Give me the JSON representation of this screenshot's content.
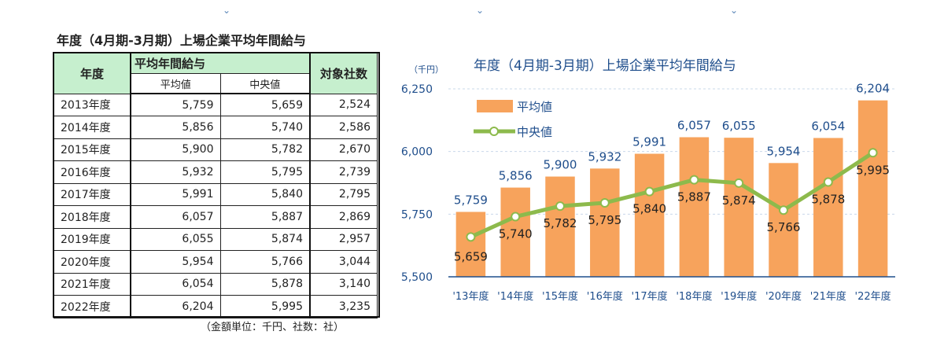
{
  "table": {
    "title": "年度（4月期-3月期）上場企業平均年間給与",
    "header_year": "年度",
    "header_salary": "平均年間給与",
    "header_avg": "平均値",
    "header_median": "中央値",
    "header_count": "対象社数",
    "rows": [
      {
        "year": "2013年度",
        "avg": "5,759",
        "median": "5,659",
        "count": "2,524"
      },
      {
        "year": "2014年度",
        "avg": "5,856",
        "median": "5,740",
        "count": "2,586"
      },
      {
        "year": "2015年度",
        "avg": "5,900",
        "median": "5,782",
        "count": "2,670"
      },
      {
        "year": "2016年度",
        "avg": "5,932",
        "median": "5,795",
        "count": "2,739"
      },
      {
        "year": "2017年度",
        "avg": "5,991",
        "median": "5,840",
        "count": "2,795"
      },
      {
        "year": "2018年度",
        "avg": "6,057",
        "median": "5,887",
        "count": "2,869"
      },
      {
        "year": "2019年度",
        "avg": "6,055",
        "median": "5,874",
        "count": "2,957"
      },
      {
        "year": "2020年度",
        "avg": "5,954",
        "median": "5,766",
        "count": "3,044"
      },
      {
        "year": "2021年度",
        "avg": "6,054",
        "median": "5,878",
        "count": "3,140"
      },
      {
        "year": "2022年度",
        "avg": "6,204",
        "median": "5,995",
        "count": "3,235"
      }
    ],
    "unit_note": "（金額単位：千円、社数：社）"
  },
  "chart_data": {
    "type": "bar",
    "title": "年度（4月期-3月期）上場企業平均年間給与",
    "ylabel": "（千円）",
    "categories": [
      "'13年度",
      "'14年度",
      "'15年度",
      "'16年度",
      "'17年度",
      "'18年度",
      "'19年度",
      "'20年度",
      "'21年度",
      "'22年度"
    ],
    "ylim": [
      5500,
      6250
    ],
    "yticks": [
      5500,
      5750,
      6000,
      6250
    ],
    "ytick_labels": [
      "5,500",
      "5,750",
      "6,000",
      "6,250"
    ],
    "grid": true,
    "legend_position": "top-left",
    "series": [
      {
        "name": "平均値",
        "kind": "bar",
        "color": "#f7a35c",
        "values": [
          5759,
          5856,
          5900,
          5932,
          5991,
          6057,
          6055,
          5954,
          6054,
          6204
        ],
        "labels": [
          "5,759",
          "5,856",
          "5,900",
          "5,932",
          "5,991",
          "6,057",
          "6,055",
          "5,954",
          "6,054",
          "6,204"
        ]
      },
      {
        "name": "中央値",
        "kind": "line",
        "color": "#8dba4c",
        "values": [
          5659,
          5740,
          5782,
          5795,
          5840,
          5887,
          5874,
          5766,
          5878,
          5995
        ],
        "labels": [
          "5,659",
          "5,740",
          "5,782",
          "5,795",
          "5,840",
          "5,887",
          "5,874",
          "5,766",
          "5,878",
          "5,995"
        ]
      }
    ]
  }
}
